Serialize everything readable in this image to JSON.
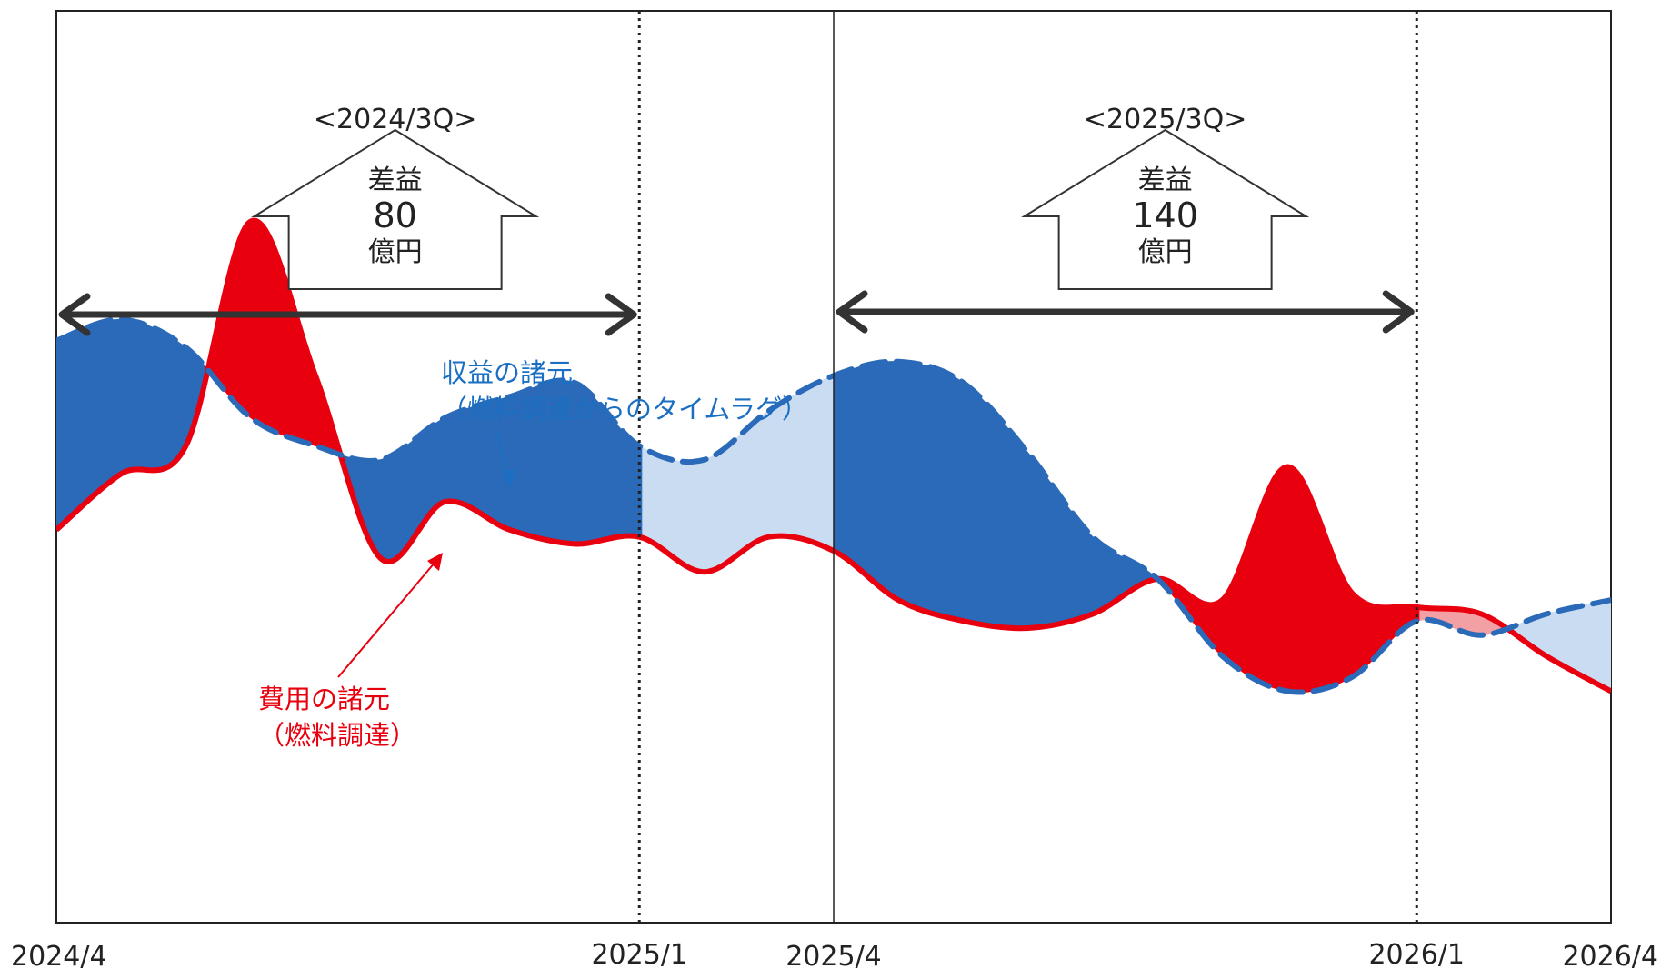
{
  "colors": {
    "revenue_line": "#2a6ab8",
    "cost_line": "#e8000f",
    "margin_positive_dark": "#2a6ab8",
    "margin_positive_light": "#c9dcf1",
    "margin_negative_dark": "#e8000f",
    "margin_negative_light": "#f2a0a4",
    "arrow": "#333333"
  },
  "chart_data": {
    "type": "area",
    "x_ticks": [
      "2024/4",
      "2025/1",
      "2025/4",
      "2026/1",
      "2026/4"
    ],
    "series": [
      {
        "key": "revenue",
        "style": "dashed",
        "x": [
          "2024/4",
          "2024/5",
          "2024/6",
          "2024/7",
          "2024/8",
          "2024/9",
          "2024/10",
          "2024/11",
          "2024/12",
          "2025/1",
          "2025/2",
          "2025/3",
          "2025/4",
          "2025/5",
          "2025/6",
          "2025/7",
          "2025/8",
          "2025/9",
          "2025/10",
          "2025/11",
          "2025/12",
          "2026/1",
          "2026/2",
          "2026/3",
          "2026/4"
        ],
        "values": [
          8.3,
          8.6,
          8.2,
          7.2,
          6.8,
          6.6,
          7.2,
          7.5,
          7.7,
          6.8,
          6.6,
          7.3,
          7.8,
          8.0,
          7.7,
          6.7,
          5.5,
          4.9,
          3.8,
          3.3,
          3.5,
          4.3,
          4.1,
          4.4,
          4.6
        ]
      },
      {
        "key": "cost",
        "style": "solid",
        "x": [
          "2024/4",
          "2024/5",
          "2024/6",
          "2024/7",
          "2024/8",
          "2024/9",
          "2024/10",
          "2024/11",
          "2024/12",
          "2025/1",
          "2025/2",
          "2025/3",
          "2025/4",
          "2025/5",
          "2025/6",
          "2025/7",
          "2025/8",
          "2025/9",
          "2025/10",
          "2025/11",
          "2025/12",
          "2026/1",
          "2026/2",
          "2026/3",
          "2026/4"
        ],
        "values": [
          5.6,
          6.4,
          6.8,
          10.0,
          7.8,
          5.2,
          6.0,
          5.6,
          5.4,
          5.5,
          5.0,
          5.5,
          5.3,
          4.6,
          4.3,
          4.2,
          4.4,
          4.9,
          4.6,
          6.5,
          4.7,
          4.5,
          4.4,
          3.8,
          3.3
        ]
      }
    ],
    "ylim": [
      0,
      13
    ],
    "highlights": [
      {
        "from": "2024/4",
        "to": "2025/1",
        "label": "<2024/3Q>",
        "box_lines": [
          "差益",
          "80",
          "億円"
        ]
      },
      {
        "from": "2025/4",
        "to": "2026/1",
        "label": "<2025/3Q>",
        "box_lines": [
          "差益",
          "140",
          "億円"
        ]
      }
    ],
    "annotations": {
      "revenue": [
        "収益の諸元",
        "（燃料調達からのタイムラグ）"
      ],
      "cost": [
        "費用の諸元",
        "（燃料調達）"
      ]
    },
    "grid": false
  }
}
